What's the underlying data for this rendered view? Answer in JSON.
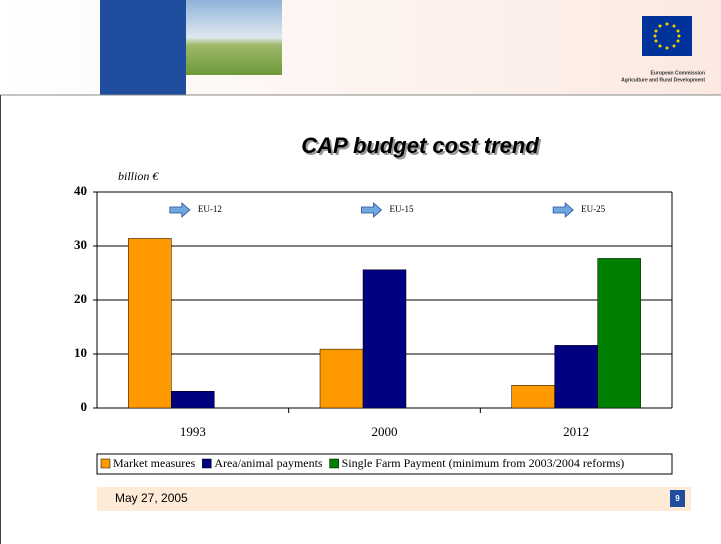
{
  "header": {
    "logo_line1": "European Commission",
    "logo_line2": "Agriculture and Rural Development"
  },
  "chart_data": {
    "type": "bar",
    "title": "CAP budget cost trend",
    "ylabel": "billion €",
    "categories": [
      "1993",
      "2000",
      "2012"
    ],
    "series": [
      {
        "name": "Market measures",
        "color": "#ff9900",
        "values": [
          31.4,
          10.9,
          4.2
        ]
      },
      {
        "name": "Area/animal payments",
        "color": "#000080",
        "values": [
          3.1,
          25.6,
          11.6
        ]
      },
      {
        "name": "Single Farm Payment (minimum from 2003/2004 reforms)",
        "color": "#008000",
        "values": [
          null,
          null,
          27.7
        ]
      }
    ],
    "annotations": [
      "EU-12",
      "EU-15",
      "EU-25"
    ],
    "ylim": [
      0,
      40
    ],
    "yticks": [
      0,
      10,
      20,
      30,
      40
    ],
    "grid": true
  },
  "footer": {
    "date": "May 27, 2005",
    "page": "9"
  }
}
